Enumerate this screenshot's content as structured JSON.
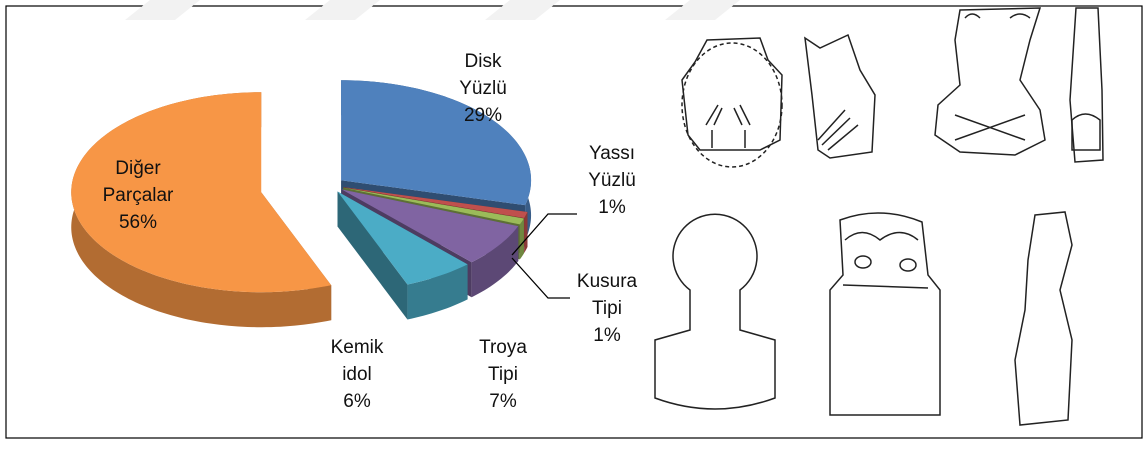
{
  "chart_data": {
    "type": "pie",
    "categories": [
      "Disk Yüzlü",
      "Yassı Yüzlü",
      "Kusura Tipi",
      "Troya Tipi",
      "Kemik idol",
      "Diğer Parçalar"
    ],
    "values": [
      29,
      1,
      1,
      7,
      6,
      56
    ],
    "value_labels": [
      "29%",
      "1%",
      "1%",
      "7%",
      "6%",
      "56%"
    ],
    "colors": [
      "#4f81bd",
      "#c0504d",
      "#9bbb59",
      "#8064a2",
      "#4bacc6",
      "#f79646"
    ]
  }
}
